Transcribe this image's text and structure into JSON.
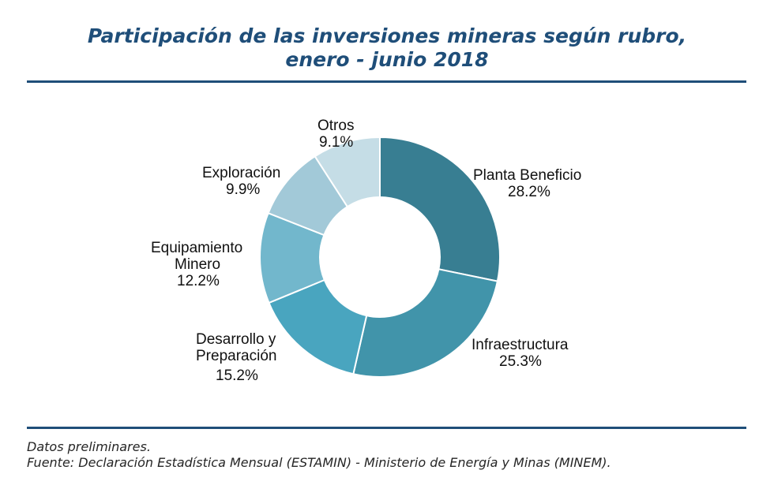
{
  "title": {
    "line1": "Participación de las inversiones mineras según rubro,",
    "line2": "enero - junio 2018"
  },
  "chart_data": {
    "type": "pie",
    "variant": "donut",
    "title": "Participación de las inversiones mineras según rubro, enero - junio 2018",
    "unit": "%",
    "slices": [
      {
        "name": "Planta Beneficio",
        "value": 28.2,
        "value_label": "28.2%",
        "color": "#387e92"
      },
      {
        "name": "Infraestructura",
        "value": 25.3,
        "value_label": "25.3%",
        "color": "#4194aa"
      },
      {
        "name": "Desarrollo y Preparación",
        "name_lines": [
          "Desarrollo y",
          "Preparación"
        ],
        "value": 15.2,
        "value_label": "15.2%",
        "color": "#49a5bf"
      },
      {
        "name": "Equipamiento Minero",
        "name_lines": [
          "Equipamiento",
          "Minero"
        ],
        "value": 12.2,
        "value_label": "12.2%",
        "color": "#72b7cc"
      },
      {
        "name": "Exploración",
        "value": 9.9,
        "value_label": "9.9%",
        "color": "#a2c9d8"
      },
      {
        "name": "Otros",
        "value": 9.1,
        "value_label": "9.1%",
        "color": "#c5dde6"
      }
    ]
  },
  "footer": {
    "note": "Datos preliminares.",
    "source": "Fuente: Declaración Estadística Mensual (ESTAMIN) - Ministerio de Energía y Minas (MINEM)."
  }
}
